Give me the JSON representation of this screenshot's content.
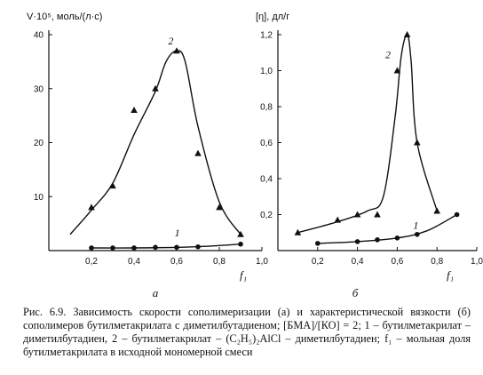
{
  "chart_data": [
    {
      "type": "scatter",
      "panel_label": "а",
      "ylabel": "V·10⁵, моль/(л·с)",
      "xlabel": "f₁",
      "xlim": [
        0,
        1.0
      ],
      "ylim": [
        0,
        40
      ],
      "x_ticks": [
        "0,2",
        "0,4",
        "0,6",
        "0,8",
        "1,0"
      ],
      "y_ticks": [
        "10",
        "20",
        "30",
        "40"
      ],
      "series": [
        {
          "name": "2",
          "marker": "triangle",
          "points": [
            [
              0.2,
              8
            ],
            [
              0.3,
              12
            ],
            [
              0.4,
              26
            ],
            [
              0.5,
              30
            ],
            [
              0.6,
              37
            ],
            [
              0.7,
              18
            ],
            [
              0.8,
              8
            ],
            [
              0.9,
              3
            ]
          ],
          "curve": [
            [
              0.1,
              3
            ],
            [
              0.2,
              7.5
            ],
            [
              0.3,
              12.5
            ],
            [
              0.4,
              21.5
            ],
            [
              0.5,
              29.5
            ],
            [
              0.55,
              35
            ],
            [
              0.6,
              37
            ],
            [
              0.64,
              35
            ],
            [
              0.7,
              23
            ],
            [
              0.8,
              9
            ],
            [
              0.9,
              3
            ]
          ]
        },
        {
          "name": "1",
          "marker": "circle",
          "points": [
            [
              0.2,
              0.5
            ],
            [
              0.3,
              0.5
            ],
            [
              0.4,
              0.5
            ],
            [
              0.5,
              0.6
            ],
            [
              0.6,
              0.6
            ],
            [
              0.7,
              0.7
            ],
            [
              0.9,
              1.2
            ]
          ],
          "curve": [
            [
              0.2,
              0.5
            ],
            [
              0.4,
              0.5
            ],
            [
              0.6,
              0.6
            ],
            [
              0.75,
              0.8
            ],
            [
              0.9,
              1.2
            ]
          ]
        }
      ]
    },
    {
      "type": "scatter",
      "panel_label": "б",
      "ylabel": "[η], дл/г",
      "xlabel": "f₁",
      "xlim": [
        0,
        1.0
      ],
      "ylim": [
        0,
        1.2
      ],
      "x_ticks": [
        "0,2",
        "0,4",
        "0,6",
        "0,8",
        "1,0"
      ],
      "y_ticks": [
        "0,2",
        "0,4",
        "0,6",
        "0,8",
        "1,0",
        "1,2"
      ],
      "series": [
        {
          "name": "2",
          "marker": "triangle",
          "points": [
            [
              0.1,
              0.1
            ],
            [
              0.3,
              0.17
            ],
            [
              0.4,
              0.2
            ],
            [
              0.5,
              0.2
            ],
            [
              0.6,
              1.0
            ],
            [
              0.65,
              1.2
            ],
            [
              0.7,
              0.6
            ],
            [
              0.8,
              0.22
            ]
          ],
          "curve": [
            [
              0.1,
              0.1
            ],
            [
              0.3,
              0.16
            ],
            [
              0.45,
              0.22
            ],
            [
              0.53,
              0.3
            ],
            [
              0.59,
              0.75
            ],
            [
              0.62,
              1.08
            ],
            [
              0.65,
              1.2
            ],
            [
              0.67,
              1.05
            ],
            [
              0.7,
              0.6
            ],
            [
              0.8,
              0.22
            ]
          ]
        },
        {
          "name": "1",
          "marker": "circle",
          "points": [
            [
              0.2,
              0.04
            ],
            [
              0.4,
              0.05
            ],
            [
              0.5,
              0.06
            ],
            [
              0.6,
              0.07
            ],
            [
              0.7,
              0.09
            ],
            [
              0.9,
              0.2
            ]
          ],
          "curve": [
            [
              0.2,
              0.04
            ],
            [
              0.4,
              0.05
            ],
            [
              0.6,
              0.07
            ],
            [
              0.75,
              0.11
            ],
            [
              0.9,
              0.2
            ]
          ]
        }
      ]
    }
  ],
  "caption": {
    "text": "Рис. 6.9. Зависимость скорости сополимеризации (а) и характеристической вязкости (б) сополимеров бутилметакрилата с диметилбутадиеном; [БМА]/[КО] = 2; 1 – бутилметакрилат – диметилбутадиен, 2 – бутилметакрилат – (C₂H₅)₂AlCl – диметилбутадиен; f₁ – мольная доля бутилметакрилата в исходной мономерной смеси"
  }
}
